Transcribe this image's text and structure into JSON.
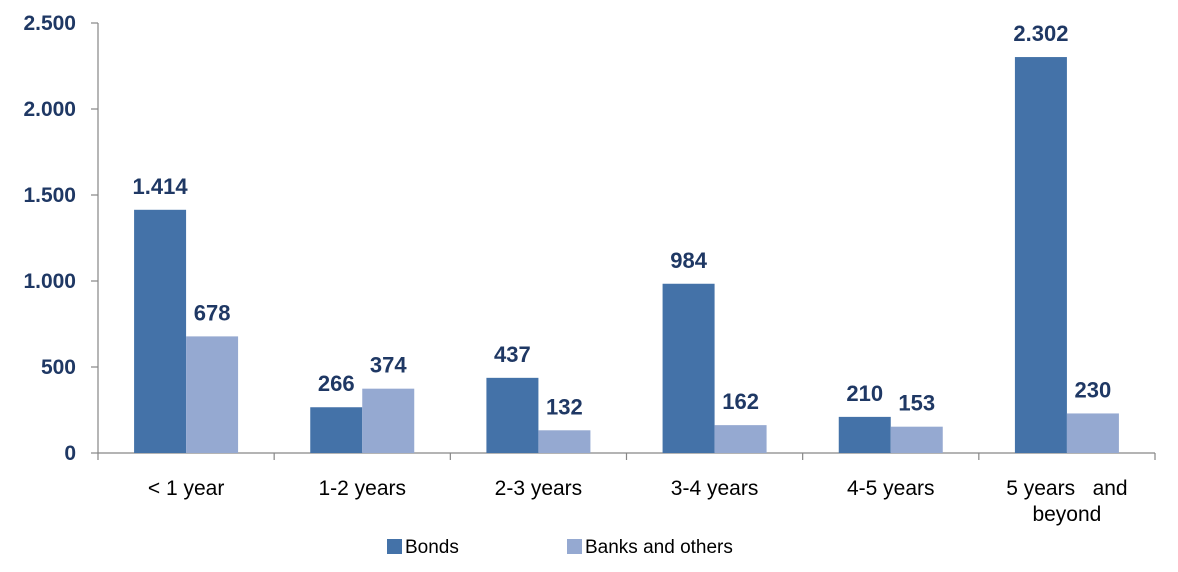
{
  "chart_data": {
    "type": "bar",
    "categories": [
      "< 1 year",
      "1-2 years",
      "2-3 years",
      "3-4 years",
      "4-5 years",
      "5 years   and beyond"
    ],
    "category_lines": [
      [
        "< 1 year"
      ],
      [
        "1-2 years"
      ],
      [
        "2-3 years"
      ],
      [
        "3-4 years"
      ],
      [
        "4-5 years"
      ],
      [
        "5 years   and",
        "beyond"
      ]
    ],
    "series": [
      {
        "name": "Bonds",
        "color": "#4472a8",
        "values": [
          1414,
          266,
          437,
          984,
          210,
          2302
        ],
        "labels": [
          "1.414",
          "266",
          "437",
          "984",
          "210",
          "2.302"
        ]
      },
      {
        "name": "Banks and others",
        "color": "#95a9d1",
        "values": [
          678,
          374,
          132,
          162,
          153,
          230
        ],
        "labels": [
          "678",
          "374",
          "132",
          "162",
          "153",
          "230"
        ]
      }
    ],
    "y_ticks": [
      0,
      500,
      1000,
      1500,
      2000,
      2500
    ],
    "y_tick_labels": [
      "0",
      "500",
      "1.000",
      "1.500",
      "2.000",
      "2.500"
    ],
    "ylim": [
      0,
      2500
    ],
    "grid": false,
    "legend_position": "bottom-center",
    "title": "",
    "xlabel": "",
    "ylabel": ""
  }
}
